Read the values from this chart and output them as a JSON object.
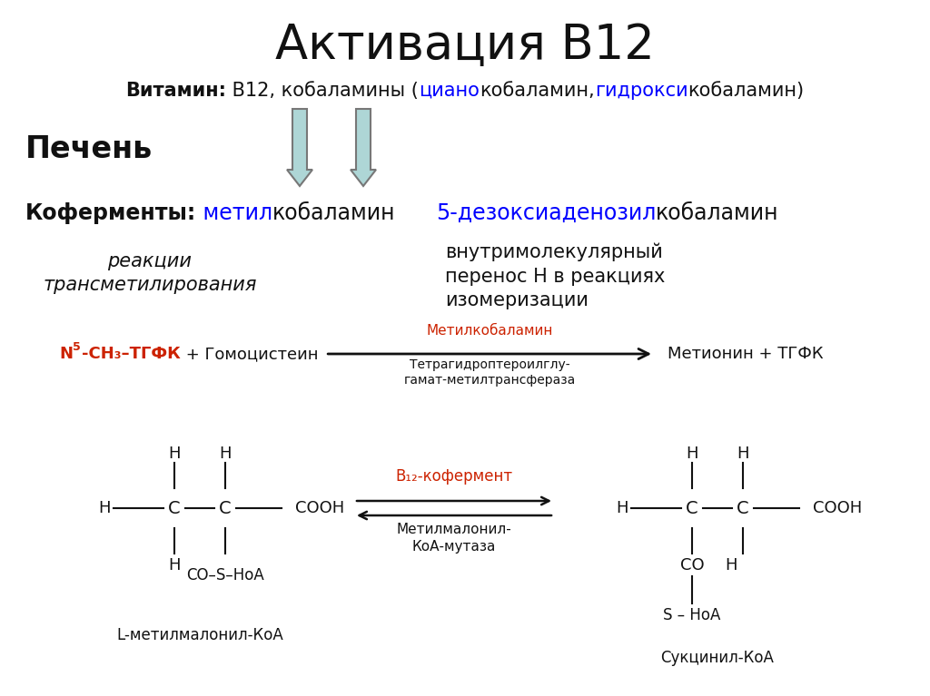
{
  "title": "Активация В12",
  "title_fontsize": 38,
  "subtitle_parts": [
    {
      "text": "Витамин:",
      "weight": "bold",
      "color": "#111111"
    },
    {
      "text": " В12, кобаламины (",
      "weight": "normal",
      "color": "#111111"
    },
    {
      "text": "циано",
      "weight": "normal",
      "color": "#0000ff"
    },
    {
      "text": "кобаламин,",
      "weight": "normal",
      "color": "#111111"
    },
    {
      "text": "гидрокси",
      "weight": "normal",
      "color": "#0000ff"
    },
    {
      "text": "кобаламин)",
      "weight": "normal",
      "color": "#111111"
    }
  ],
  "subtitle_fontsize": 15,
  "pecheн": "Печень",
  "pechен_fontsize": 24,
  "coferments_bold": "Коферменты:",
  "coferment1_cyan": " метил",
  "coferment1_black": "кобаламин",
  "coferment2_cyan": "5-дезоксиаденозил",
  "coferment2_black": "кобаламин",
  "coferments_fontsize": 17,
  "reaction1_italic": "реакции\nтрансметилирования",
  "reaction2": "внутримолекулярный\nперенос Н в реакциях\nизомеризации",
  "reaction_fontsize": 15,
  "eq1_arrow_top_red": "Метилкобаламин",
  "eq1_arrow_bottom": "Тетрагидроптероилглу-\nгамат-метилтрансфераза",
  "eq1_right": "Метионин + ТГФК",
  "eq2_arrow_top_red": "В₁₂-кофермент",
  "eq2_arrow_bottom": "Метилмалонил-\nКоА-мутаза",
  "label_left": "L-метилмалонил-КоА",
  "label_right": "Сукцинил-КоА",
  "bg_color": "#ffffff",
  "arrow_fill": "#aed6d6",
  "arrow_edge": "#777777",
  "blue_color": "#0000ff",
  "red_color": "#cc2200",
  "dark_color": "#111111"
}
